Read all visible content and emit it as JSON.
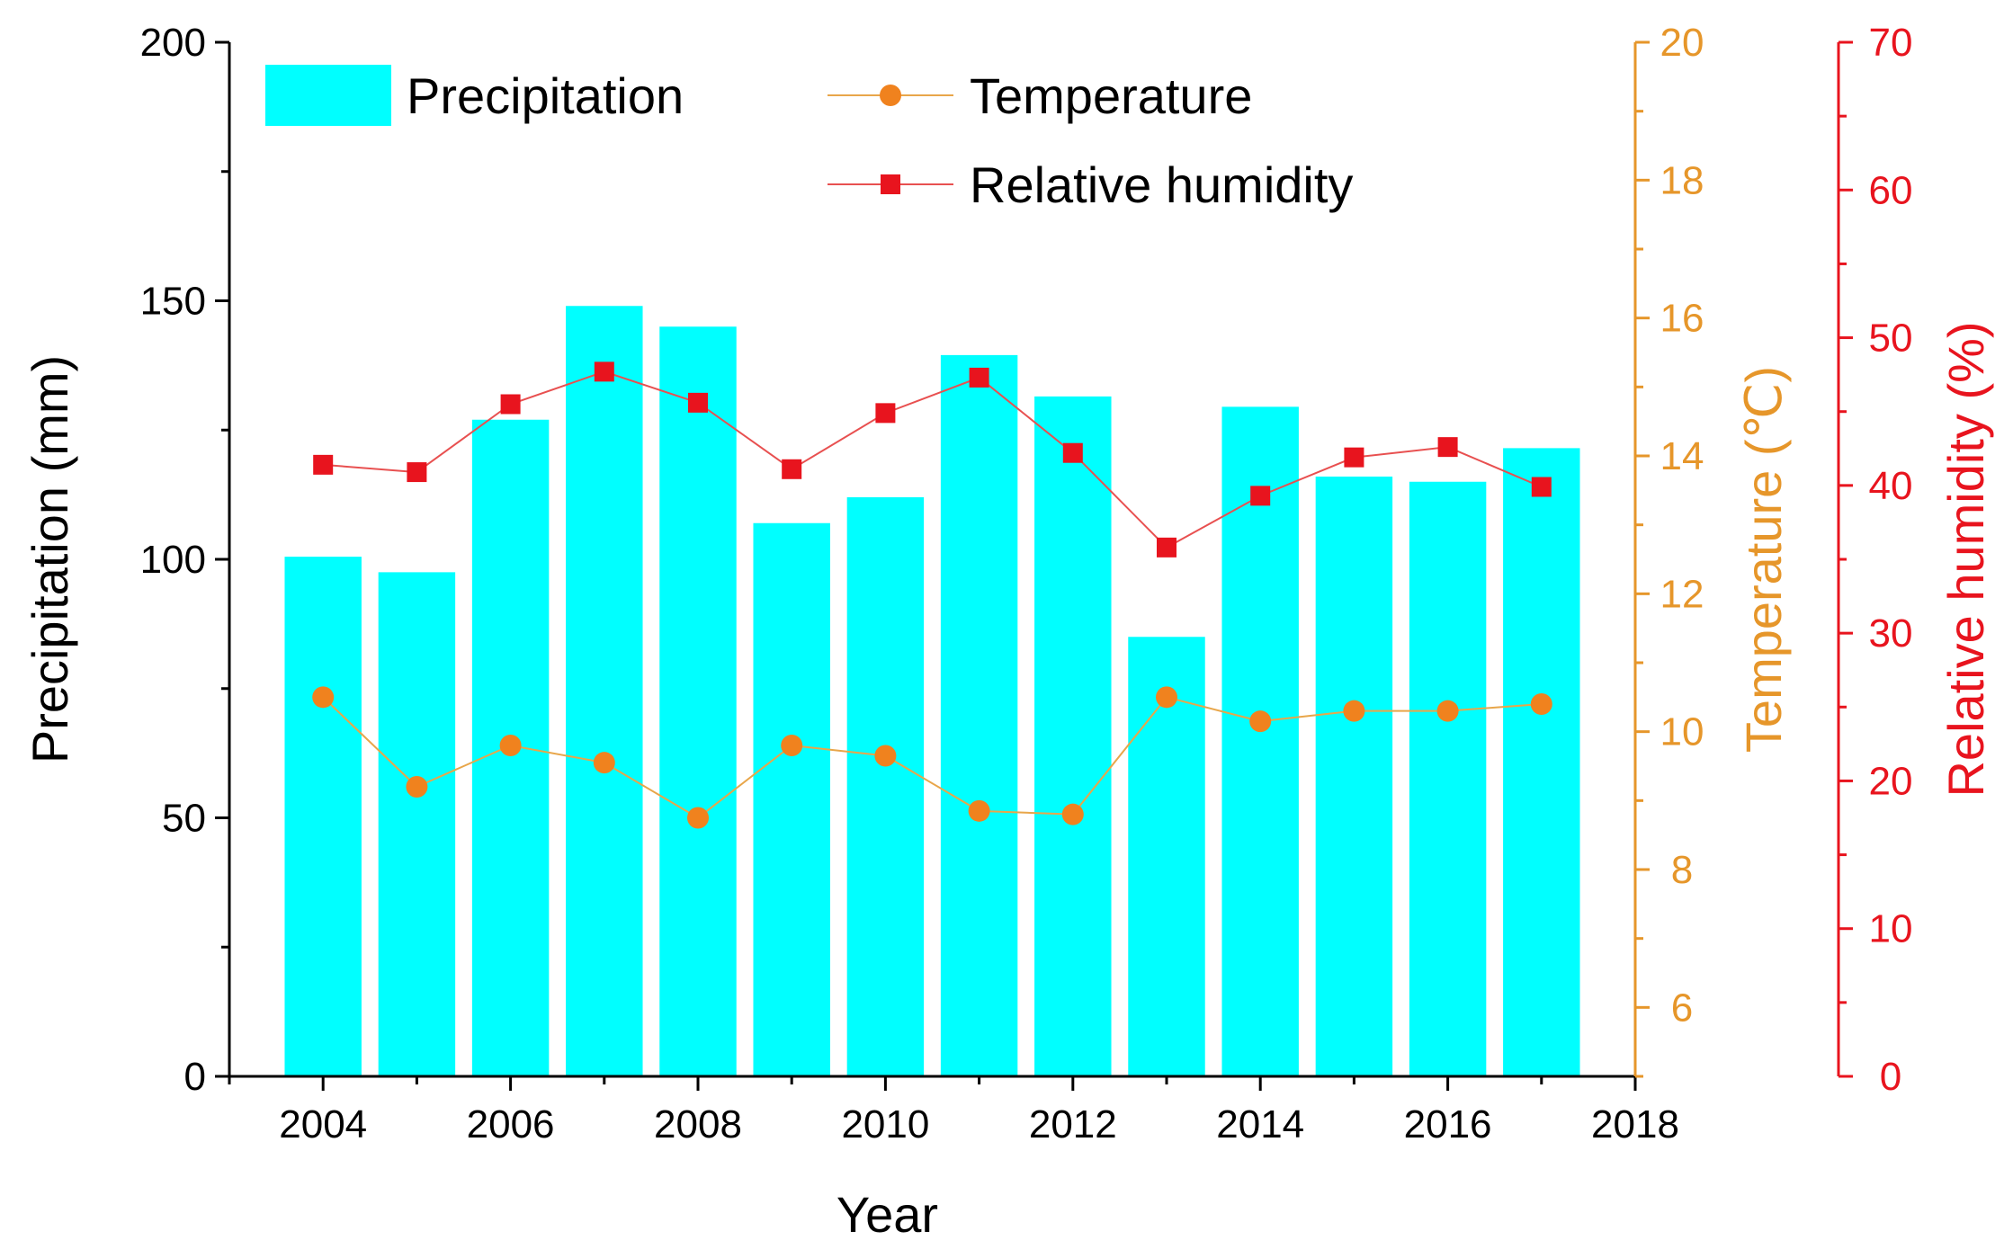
{
  "chart_data": {
    "type": "bar",
    "x": [
      2004,
      2005,
      2006,
      2007,
      2008,
      2009,
      2010,
      2011,
      2012,
      2013,
      2014,
      2015,
      2016,
      2017
    ],
    "xlabel": "Year",
    "xticks": [
      "2004",
      "2006",
      "2008",
      "2010",
      "2012",
      "2014",
      "2016",
      "2018"
    ],
    "xlim": [
      2003,
      2018
    ],
    "series": [
      {
        "name": "Precipitation",
        "type": "bar",
        "axis": "left",
        "color": "#00ffff",
        "values": [
          100.5,
          97.5,
          127,
          149,
          145,
          107,
          112,
          139.5,
          131.5,
          85,
          129.5,
          116,
          115,
          121.5
        ]
      },
      {
        "name": "Temperature",
        "type": "line",
        "axis": "right1",
        "color": "#f0821e",
        "marker": "circle",
        "values": [
          10.5,
          9.2,
          9.8,
          9.55,
          8.75,
          9.8,
          9.65,
          8.85,
          8.8,
          10.5,
          10.15,
          10.3,
          10.3,
          10.4
        ]
      },
      {
        "name": "Relative humidity",
        "type": "line",
        "axis": "right2",
        "color": "#e8141e",
        "marker": "square",
        "values": [
          41.4,
          40.9,
          45.5,
          47.7,
          45.6,
          41.1,
          44.9,
          47.3,
          42.2,
          35.8,
          39.3,
          41.9,
          42.6,
          39.9
        ]
      }
    ],
    "axes": {
      "left": {
        "label": "Precipitation (mm)",
        "range": [
          0,
          200
        ],
        "ticks": [
          "0",
          "50",
          "100",
          "150",
          "200"
        ],
        "color": "#000000"
      },
      "right1": {
        "label": "Temperature (℃)",
        "range": [
          5,
          20
        ],
        "ticks": [
          "6",
          "8",
          "10",
          "12",
          "14",
          "16",
          "18",
          "20"
        ],
        "color": "#e6962a"
      },
      "right2": {
        "label": "Relative humidity (%)",
        "range": [
          0,
          70
        ],
        "ticks": [
          "0",
          "10",
          "20",
          "30",
          "40",
          "50",
          "60",
          "70"
        ],
        "color": "#e8141e"
      }
    },
    "legend": {
      "position": "top-left",
      "entries": [
        "Precipitation",
        "Temperature",
        "Relative humidity"
      ]
    }
  }
}
